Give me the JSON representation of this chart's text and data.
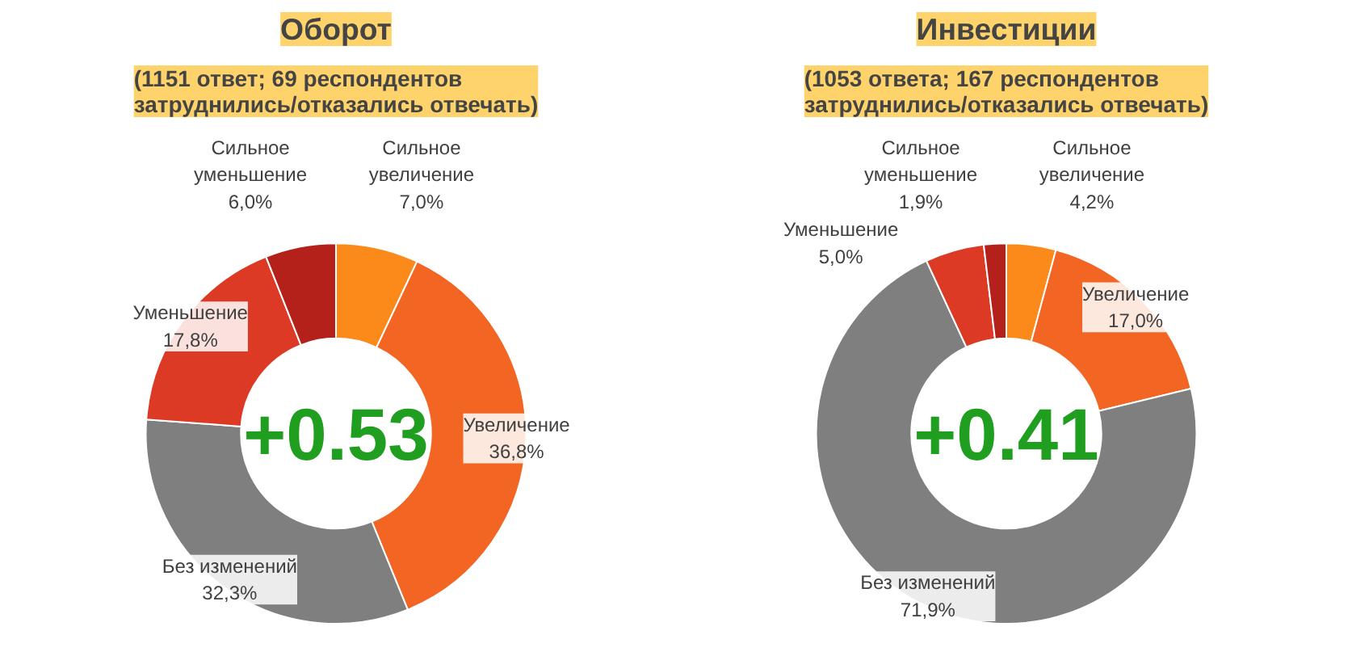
{
  "chart_data": [
    {
      "type": "donut",
      "title": "Оборот",
      "subtitle": "(1151 ответ; 69 респондентов\nзатруднились/отказались отвечать)",
      "categories": [
        "Сильное\nувеличение",
        "Увеличение",
        "Без изменений",
        "Уменьшение",
        "Сильное\nуменьшение"
      ],
      "values": [
        7.0,
        36.8,
        32.3,
        17.8,
        6.0
      ],
      "value_labels": [
        "7,0%",
        "36,8%",
        "32,3%",
        "17,8%",
        "6,0%"
      ],
      "colors": [
        "#fb8a1a",
        "#f26522",
        "#7f7f7f",
        "#dc3a24",
        "#b4211b"
      ],
      "annotations": [
        "+0.53"
      ],
      "legend": false
    },
    {
      "type": "donut",
      "title": "Инвестиции",
      "subtitle": "(1053 ответа; 167 респондентов\nзатруднились/отказались отвечать)",
      "categories": [
        "Сильное\nувеличение",
        "Увеличение",
        "Без изменений",
        "Уменьшение",
        "Сильное\nуменьшение"
      ],
      "values": [
        4.2,
        17.0,
        71.9,
        5.0,
        1.9
      ],
      "value_labels": [
        "4,2%",
        "17,0%",
        "71,9%",
        "5,0%",
        "1,9%"
      ],
      "colors": [
        "#fb8a1a",
        "#f26522",
        "#7f7f7f",
        "#dc3a24",
        "#b4211b"
      ],
      "annotations": [
        "+0.41"
      ],
      "legend": false
    }
  ]
}
